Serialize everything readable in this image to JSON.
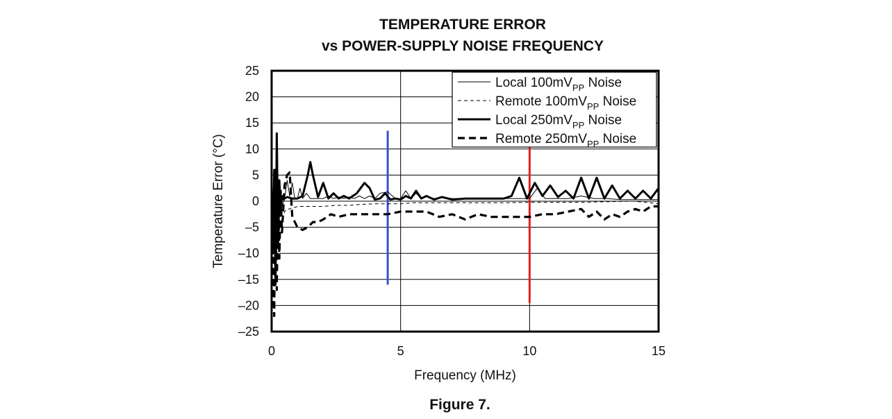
{
  "chart_data": {
    "type": "line",
    "title_line1": "TEMPERATURE ERROR",
    "title_line2": "vs POWER-SUPPLY NOISE FREQUENCY",
    "xlabel": "Frequency (MHz)",
    "ylabel": "Temperature Error (°C)",
    "xlim": [
      0,
      15
    ],
    "ylim": [
      -25,
      25
    ],
    "xticks": [
      0,
      5,
      10,
      15
    ],
    "yticks": [
      25,
      20,
      15,
      10,
      5,
      0,
      -5,
      -10,
      -15,
      -20,
      -25
    ],
    "ytick_labels": [
      "25",
      "20",
      "15",
      "10",
      "5",
      "0",
      "–5",
      "–10",
      "–15",
      "–20",
      "–25"
    ],
    "grid": true,
    "legend_position": "top-right",
    "series": [
      {
        "name": "Local 100mVPP Noise",
        "legend_main": "Local 100mV",
        "legend_sub": "PP",
        "legend_tail": " Noise",
        "style": "thin-solid",
        "x": [
          0,
          0.1,
          0.15,
          0.2,
          0.25,
          0.3,
          0.35,
          0.4,
          0.5,
          0.6,
          0.7,
          0.8,
          0.9,
          1.0,
          1.1,
          1.2,
          1.35,
          1.5,
          1.6,
          1.7,
          1.85,
          2.0,
          2.2,
          2.4,
          2.6,
          2.8,
          3.0,
          3.2,
          3.4,
          3.6,
          3.8,
          4.0,
          4.2,
          4.5,
          4.8,
          5.0,
          5.2,
          5.4,
          5.6,
          5.8,
          6.0,
          6.3,
          6.6,
          7.0,
          7.5,
          8.0,
          8.5,
          9.0,
          9.5,
          10.0,
          10.3,
          10.6,
          11.0,
          11.5,
          12.0,
          12.5,
          13.0,
          13.5,
          14.0,
          14.5,
          15.0
        ],
        "y": [
          3,
          -6,
          5,
          -8,
          4,
          -3,
          2,
          -1,
          0.5,
          4,
          1,
          3.5,
          0.5,
          0.5,
          2.5,
          0.5,
          1.5,
          0.5,
          0.5,
          0.5,
          0.5,
          0.5,
          1.0,
          0.5,
          0.8,
          0.5,
          0.8,
          0.5,
          1.0,
          0.5,
          1.0,
          0.5,
          1.5,
          1.8,
          0.5,
          0.5,
          2.0,
          0.5,
          1.5,
          0.5,
          1.0,
          0.5,
          0.8,
          0.5,
          0.5,
          0.5,
          0.5,
          0.5,
          0.5,
          0.5,
          2.5,
          0.5,
          0.5,
          0.5,
          1.0,
          0.5,
          0.5,
          0.3,
          0.3,
          0.3,
          0.3
        ]
      },
      {
        "name": "Remote 100mVPP Noise",
        "legend_main": "Remote 100mV",
        "legend_sub": "PP",
        "legend_tail": " Noise",
        "style": "thin-dashed",
        "x": [
          0,
          0.1,
          0.15,
          0.2,
          0.25,
          0.3,
          0.35,
          0.4,
          0.5,
          0.6,
          0.7,
          0.8,
          0.9,
          1.0,
          1.5,
          2.0,
          2.5,
          3.0,
          3.5,
          4.0,
          4.5,
          5.0,
          5.5,
          6.0,
          7.0,
          8.0,
          9.0,
          10.0,
          11.0,
          12.0,
          13.0,
          14.0,
          14.5,
          15.0
        ],
        "y": [
          2,
          -8,
          4,
          -10,
          3,
          -6,
          1,
          -4,
          -2,
          -1.5,
          -1.5,
          -1.2,
          -1.2,
          -1.0,
          -1.0,
          -1.0,
          -0.8,
          -0.8,
          -0.6,
          -0.5,
          -0.5,
          -0.5,
          -0.3,
          -0.3,
          -0.3,
          -0.3,
          -0.3,
          -0.2,
          -0.2,
          -0.2,
          -0.1,
          0,
          -0.2,
          -0.5
        ]
      },
      {
        "name": "Local 250mVPP Noise",
        "legend_main": "Local 250mV",
        "legend_sub": "PP",
        "legend_tail": " Noise",
        "style": "thick-solid",
        "x": [
          0,
          0.05,
          0.1,
          0.15,
          0.2,
          0.25,
          0.3,
          0.35,
          0.4,
          0.5,
          0.6,
          0.8,
          1.0,
          1.2,
          1.4,
          1.5,
          1.6,
          1.8,
          2.0,
          2.2,
          2.4,
          2.6,
          2.8,
          3.0,
          3.3,
          3.6,
          3.8,
          4.0,
          4.2,
          4.4,
          4.6,
          4.8,
          5.0,
          5.2,
          5.4,
          5.6,
          5.8,
          6.0,
          6.3,
          6.6,
          7.0,
          7.5,
          8.0,
          8.5,
          9.0,
          9.3,
          9.6,
          9.9,
          10.2,
          10.5,
          10.8,
          11.1,
          11.4,
          11.7,
          12.0,
          12.3,
          12.6,
          12.9,
          13.2,
          13.5,
          13.8,
          14.1,
          14.4,
          14.7,
          15.0
        ],
        "y": [
          3,
          -10,
          6,
          -16,
          13,
          -8,
          4,
          -2,
          1,
          0.5,
          0.8,
          0.5,
          0.5,
          1.0,
          5.0,
          7.5,
          5.0,
          0.8,
          3.5,
          0.5,
          1.5,
          0.5,
          1.0,
          0.5,
          1.5,
          3.5,
          2.5,
          0.3,
          0.5,
          1.5,
          0.3,
          0.5,
          0.3,
          1.0,
          0.5,
          2.0,
          0.5,
          1.0,
          0.3,
          0.8,
          0.3,
          0.5,
          0.5,
          0.5,
          0.5,
          1.0,
          4.5,
          0.5,
          3.5,
          1.0,
          3.0,
          0.8,
          2.0,
          0.5,
          4.5,
          0.5,
          4.5,
          0.5,
          3.0,
          0.5,
          2.0,
          0.5,
          2.0,
          0.5,
          2.5
        ]
      },
      {
        "name": "Remote 250mVPP Noise",
        "legend_main": "Remote 250mV",
        "legend_sub": "PP",
        "legend_tail": " Noise",
        "style": "thick-dashed",
        "x": [
          0,
          0.05,
          0.1,
          0.15,
          0.2,
          0.25,
          0.3,
          0.35,
          0.4,
          0.5,
          0.6,
          0.7,
          0.8,
          0.9,
          1.0,
          1.2,
          1.4,
          1.6,
          1.8,
          2.0,
          2.3,
          2.6,
          3.0,
          3.5,
          4.0,
          4.5,
          5.0,
          5.5,
          6.0,
          6.5,
          7.0,
          7.5,
          8.0,
          8.5,
          9.0,
          9.5,
          10.0,
          10.5,
          11.0,
          11.5,
          12.0,
          12.3,
          12.6,
          12.9,
          13.2,
          13.5,
          13.8,
          14.1,
          14.4,
          14.7,
          15.0
        ],
        "y": [
          0,
          -15,
          -22,
          6,
          -17,
          4,
          -11,
          2,
          -6,
          3,
          5,
          5.5,
          -3,
          -4,
          -5,
          -5.5,
          -5,
          -4,
          -4,
          -3.5,
          -2.5,
          -3,
          -2.5,
          -2.5,
          -2.5,
          -2.5,
          -2,
          -2,
          -2,
          -3,
          -2.5,
          -3.5,
          -2.5,
          -3,
          -3,
          -3,
          -3,
          -2.5,
          -2.5,
          -2,
          -1.5,
          -3,
          -2,
          -3.5,
          -2.5,
          -3,
          -2,
          -1.5,
          -2,
          -1.0,
          -1.0
        ]
      }
    ],
    "annotation_lines": [
      {
        "x": 4.5,
        "y_top": 13.5,
        "y_bottom": -16.0,
        "color": "#3a4fd0"
      },
      {
        "x": 10.0,
        "y_top": 11.0,
        "y_bottom": -19.5,
        "color": "#e02020"
      }
    ]
  },
  "caption": "Figure 7."
}
